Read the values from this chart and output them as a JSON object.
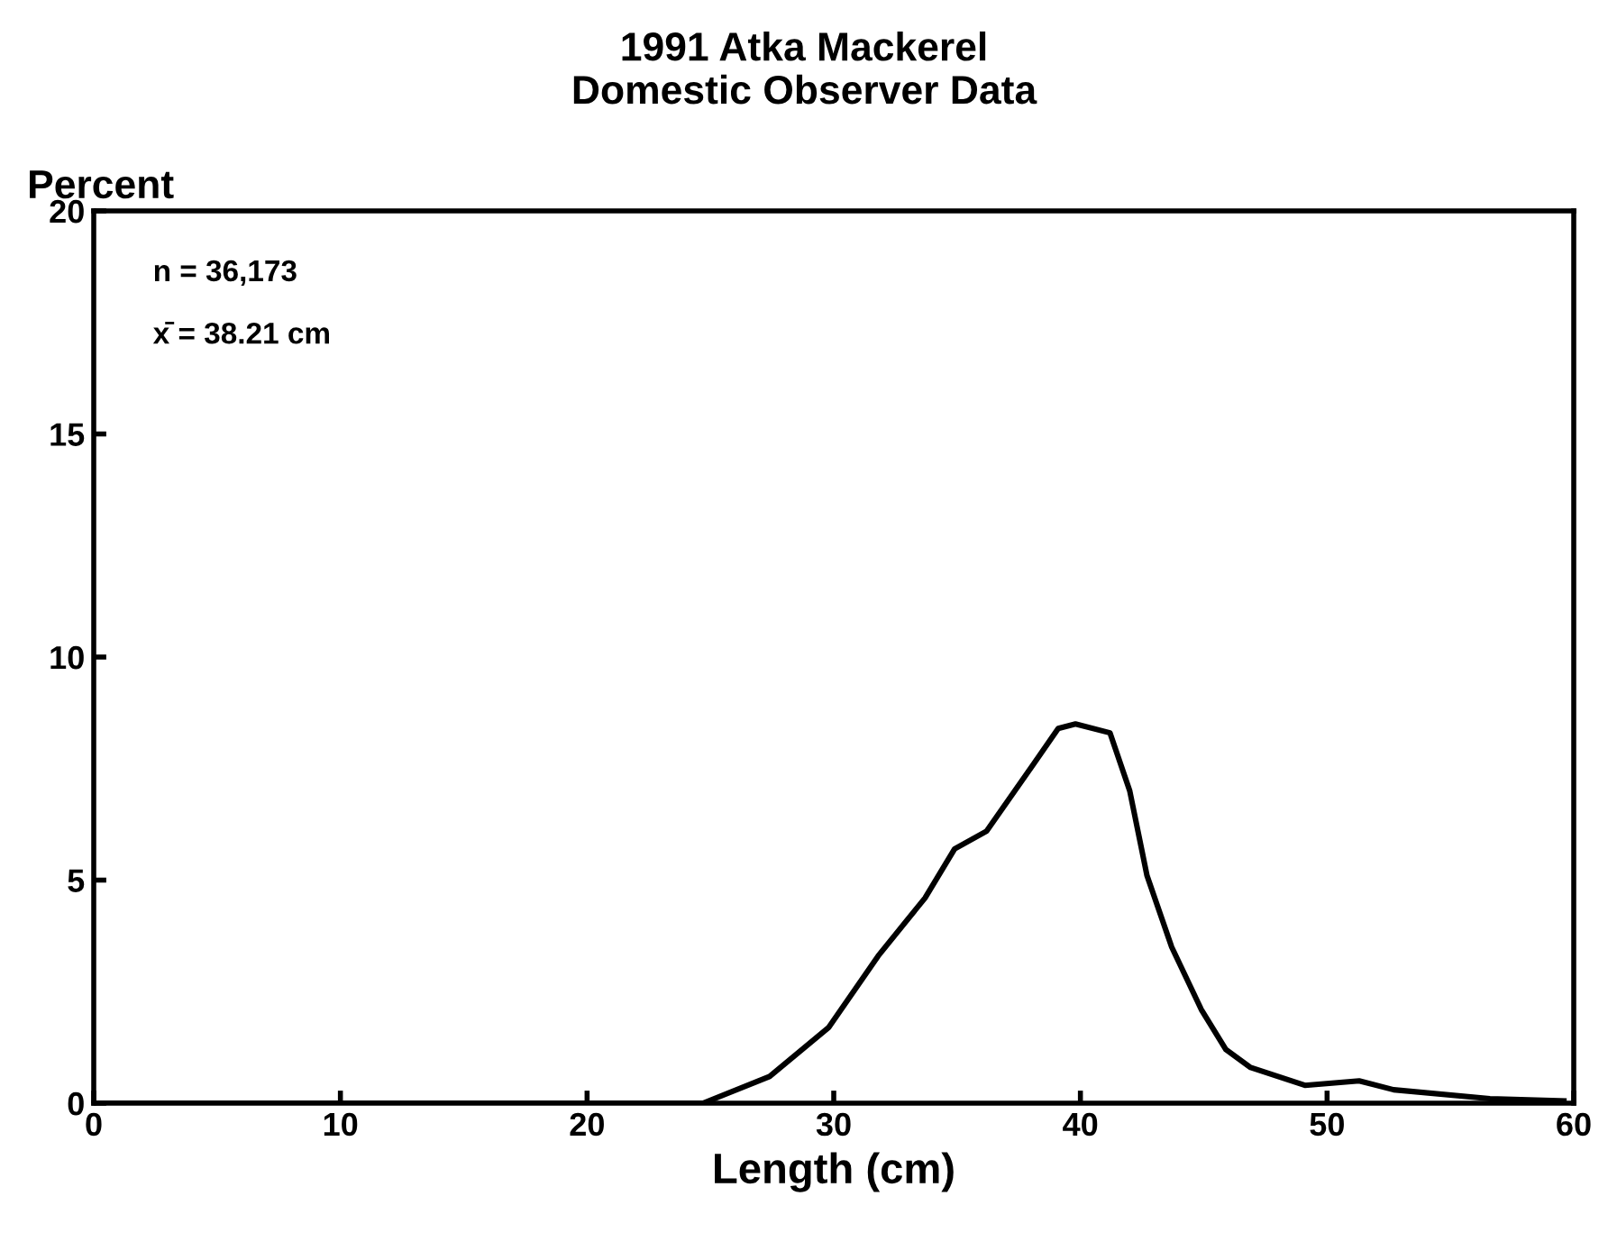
{
  "chart_data": {
    "type": "line",
    "title": "1991 Atka Mackerel\nDomestic Observer Data",
    "xlabel": "Length (cm)",
    "ylabel": "Percent",
    "annotations": [
      "n = 36,173",
      "x̄ = 38.21 cm"
    ],
    "x": [
      0,
      24.7,
      27.4,
      29.8,
      31.8,
      33.7,
      34.9,
      36.2,
      38.1,
      39.1,
      39.8,
      41.2,
      42.0,
      42.7,
      43.7,
      44.9,
      45.9,
      46.9,
      49.1,
      51.3,
      52.7,
      56.6,
      59.6
    ],
    "series": [
      {
        "color": "#000000",
        "values": [
          0,
          0,
          0.6,
          1.7,
          3.3,
          4.6,
          5.7,
          6.1,
          7.6,
          8.4,
          8.5,
          8.3,
          7.0,
          5.1,
          3.5,
          2.1,
          1.2,
          0.8,
          0.4,
          0.5,
          0.3,
          0.1,
          0.05
        ]
      }
    ],
    "xlim": [
      0,
      60
    ],
    "ylim": [
      0,
      20
    ],
    "xticks": [
      0,
      10,
      20,
      30,
      40,
      50,
      60
    ],
    "yticks": [
      0,
      5,
      10,
      15,
      20
    ],
    "grid": false,
    "legend": false,
    "marker": "none",
    "line_style": "solid"
  }
}
